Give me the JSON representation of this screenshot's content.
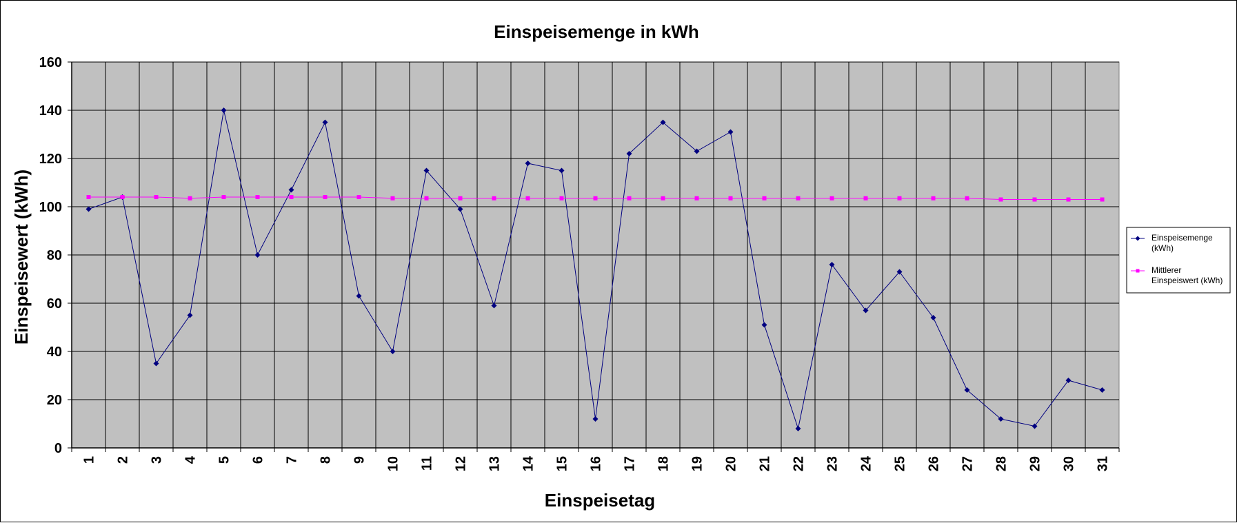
{
  "chart_data": {
    "type": "line",
    "title": "Einspeisemenge in kWh",
    "xlabel": "Einspeisetag",
    "ylabel": "Einspeisewert  (kWh)",
    "categories": [
      "1",
      "2",
      "3",
      "4",
      "5",
      "6",
      "7",
      "8",
      "9",
      "10",
      "11",
      "12",
      "13",
      "14",
      "15",
      "16",
      "17",
      "18",
      "19",
      "20",
      "21",
      "22",
      "23",
      "24",
      "25",
      "26",
      "27",
      "28",
      "29",
      "30",
      "31"
    ],
    "ylim": [
      0,
      160
    ],
    "yticks": [
      0,
      20,
      40,
      60,
      80,
      100,
      120,
      140,
      160
    ],
    "grid": true,
    "legend_position": "right",
    "plot_background": "#c0c0c0",
    "series": [
      {
        "name_lines": [
          "Einspeisemenge",
          "(kWh)"
        ],
        "color": "#000080",
        "marker": "diamond",
        "values": [
          99,
          104,
          35,
          55,
          140,
          80,
          107,
          135,
          63,
          40,
          115,
          99,
          59,
          118,
          115,
          12,
          122,
          135,
          123,
          131,
          51,
          8,
          76,
          57,
          73,
          54,
          24,
          12,
          9,
          28,
          24
        ]
      },
      {
        "name_lines": [
          "Mittlerer",
          "Einspeiswert (kWh)"
        ],
        "color": "#ff00ff",
        "marker": "square",
        "values": [
          104,
          104,
          104,
          103.5,
          104,
          104,
          104,
          104,
          104,
          103.5,
          103.5,
          103.5,
          103.5,
          103.5,
          103.5,
          103.5,
          103.5,
          103.5,
          103.5,
          103.5,
          103.5,
          103.5,
          103.5,
          103.5,
          103.5,
          103.5,
          103.5,
          103,
          103,
          103,
          103
        ]
      }
    ]
  }
}
